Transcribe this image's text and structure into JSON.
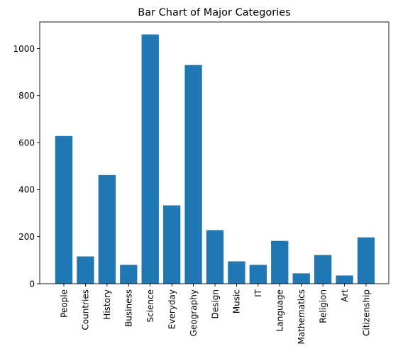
{
  "chart_data": {
    "type": "bar",
    "title": "Bar Chart of Major Categories",
    "xlabel": "",
    "ylabel": "",
    "categories": [
      "People",
      "Countries",
      "History",
      "Business",
      "Science",
      "Everyday",
      "Geography",
      "Design",
      "Music",
      "IT",
      "Language",
      "Mathematics",
      "Religion",
      "Art",
      "Citizenship"
    ],
    "values": [
      628,
      116,
      462,
      80,
      1060,
      333,
      930,
      228,
      95,
      80,
      182,
      44,
      122,
      35,
      197
    ],
    "ylim": [
      0,
      1113
    ],
    "yticks": [
      0,
      200,
      400,
      600,
      800,
      1000
    ],
    "bar_color": "#1f77b4",
    "grid": false,
    "legend": "none"
  }
}
